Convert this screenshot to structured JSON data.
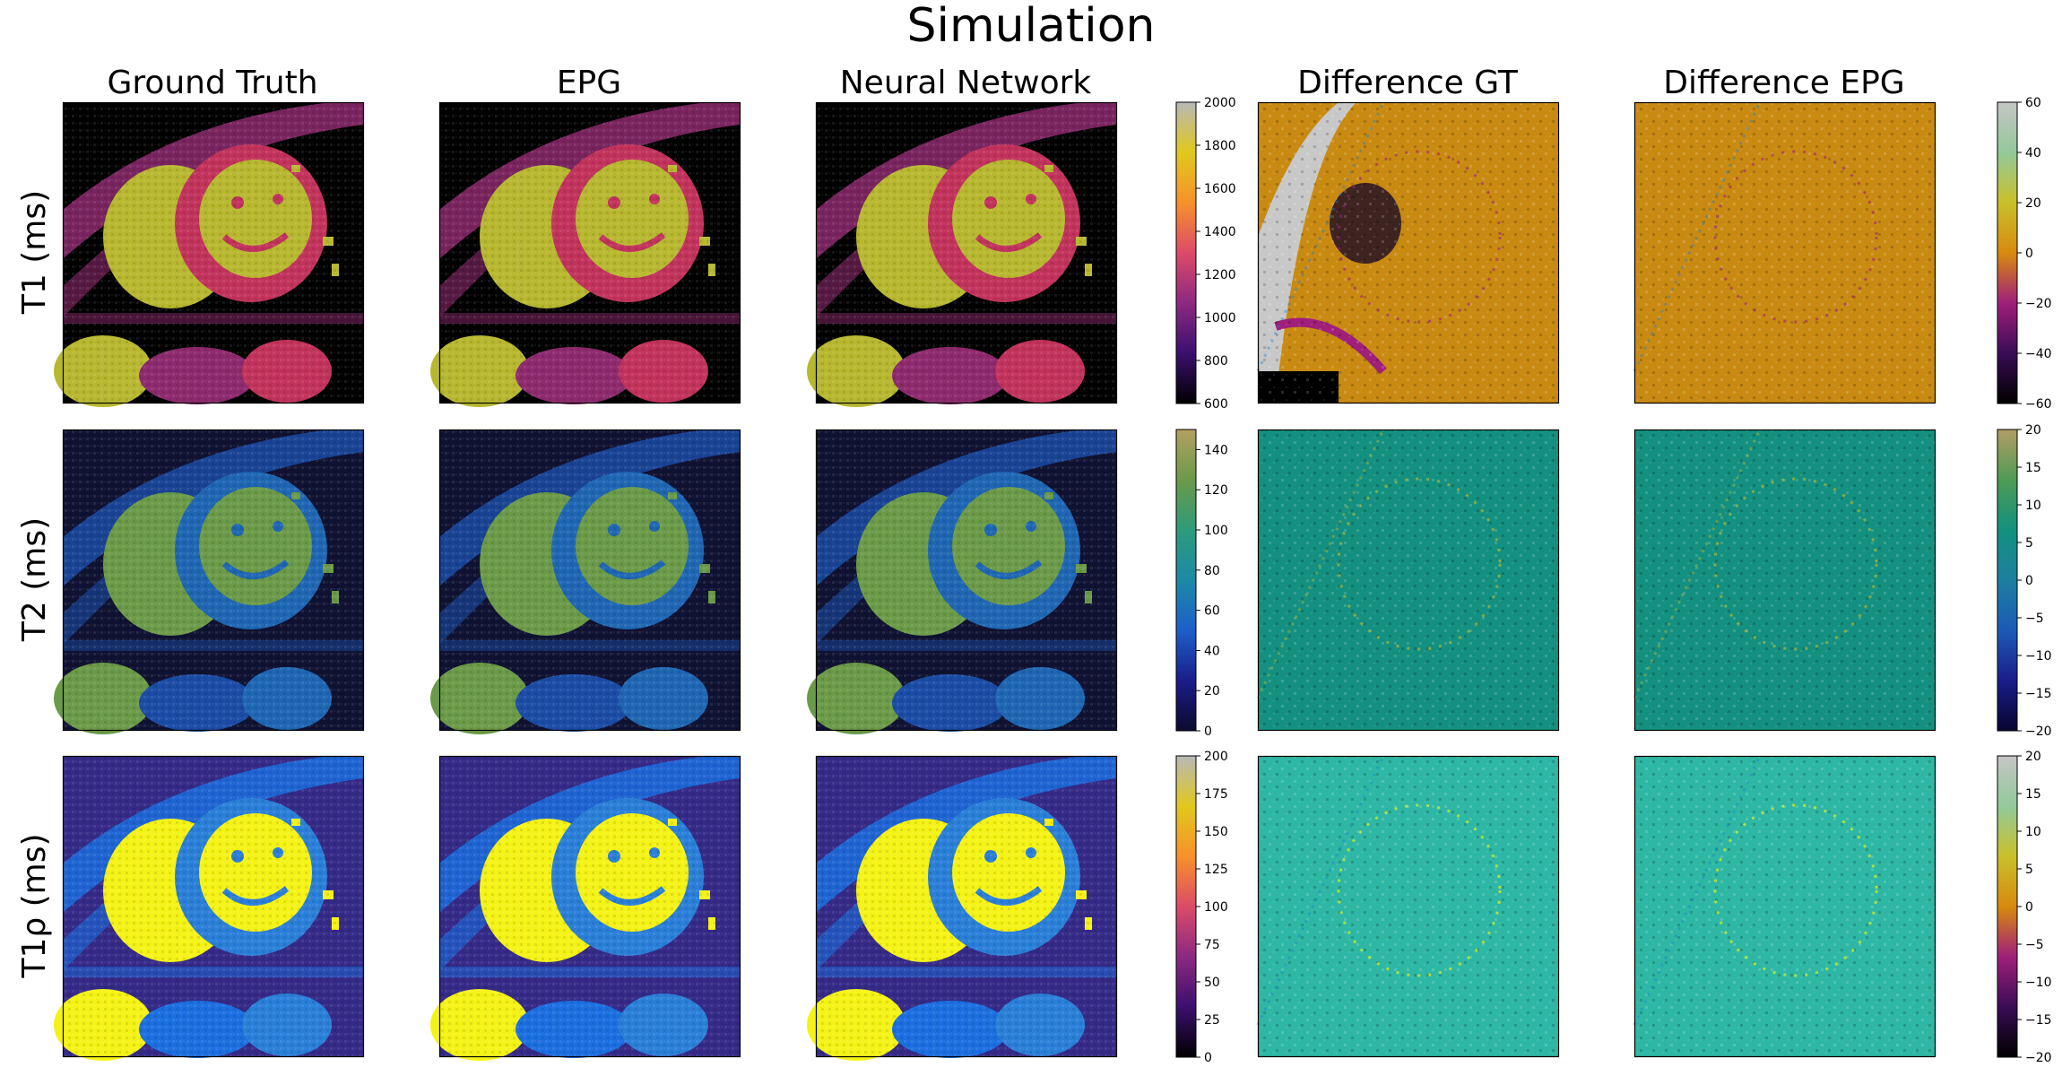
{
  "figure": {
    "title": "Simulation",
    "column_titles": [
      "Ground Truth",
      "EPG",
      "Neural Network",
      "Difference GT",
      "Difference EPG"
    ],
    "row_labels": [
      "T1 (ms)",
      "T2 (ms)",
      "T1ρ (ms)"
    ]
  },
  "chart_data": {
    "type": "heatmap",
    "title": "Simulation",
    "description_columns": [
      "Ground Truth",
      "EPG",
      "Neural Network",
      "Difference GT",
      "Difference EPG"
    ],
    "rows": [
      {
        "label": "T1 (ms)",
        "map_colorbar": {
          "colormap": "inferno-like",
          "range": [
            600,
            2000
          ],
          "ticks": [
            600,
            800,
            1000,
            1200,
            1400,
            1600,
            1800,
            2000
          ],
          "colors": [
            "#000000",
            "#3b0f6f",
            "#8c2981",
            "#dd4a68",
            "#f7912a",
            "#e0c81c",
            "#b8b8b8"
          ]
        },
        "diff_colorbar": {
          "colormap": "diverging-inferno",
          "range": [
            -60,
            60
          ],
          "ticks": [
            -60,
            -40,
            -20,
            0,
            20,
            40,
            60
          ],
          "colors": [
            "#000000",
            "#3a0c56",
            "#a01f7a",
            "#d88a0e",
            "#c9c02a",
            "#93c99a",
            "#c5c5c5"
          ]
        },
        "panel_colors": {
          "background": "#000000",
          "tissue": "#8e2a6e",
          "blood": "#b8b830",
          "myocardium": "#c2335c",
          "diff_bg": "#c98a12"
        }
      },
      {
        "label": "T2 (ms)",
        "map_colorbar": {
          "colormap": "viridis-like",
          "range": [
            0,
            150
          ],
          "ticks": [
            0,
            20,
            40,
            60,
            80,
            100,
            120,
            140
          ],
          "colors": [
            "#0c0a2e",
            "#1a1d8a",
            "#1c5fc9",
            "#1c8aa7",
            "#2d9b7a",
            "#6b9a48",
            "#b3a062"
          ]
        },
        "diff_colorbar": {
          "colormap": "diverging-viridis",
          "range": [
            -20,
            20
          ],
          "ticks": [
            -20,
            -15,
            -10,
            -5,
            0,
            5,
            10,
            15,
            20
          ],
          "colors": [
            "#070530",
            "#1a1d8a",
            "#1c5ab8",
            "#1d7fa0",
            "#13917f",
            "#4f9b55",
            "#b29d64"
          ]
        },
        "panel_colors": {
          "background": "#0f1232",
          "tissue": "#1b4ca6",
          "blood": "#6b9a48",
          "myocardium": "#1f66b3",
          "diff_bg": "#149080"
        }
      },
      {
        "label": "T1ρ (ms)",
        "map_colorbar": {
          "colormap": "parula-like",
          "range": [
            0,
            200
          ],
          "ticks": [
            0,
            25,
            50,
            75,
            100,
            125,
            150,
            175,
            200
          ],
          "colors": [
            "#352a87",
            "#0f5cdd",
            "#1481d6",
            "#06a4ca",
            "#2eb7a4",
            "#87bf77",
            "#d1bb59",
            "#fec832",
            "#f9fb0e"
          ]
        },
        "diff_colorbar": {
          "colormap": "parula-like",
          "range": [
            -20,
            20
          ],
          "ticks": [
            -20,
            -15,
            -10,
            -5,
            0,
            5,
            10,
            15,
            20
          ],
          "colors": [
            "#352a87",
            "#0f5cdd",
            "#1481d6",
            "#06a4ca",
            "#2eb7a4",
            "#87bf77",
            "#d1bb59",
            "#fec832",
            "#f9fb0e"
          ]
        },
        "panel_colors": {
          "background": "#352a87",
          "tissue": "#1b6fe0",
          "blood": "#f5f316",
          "myocardium": "#2a7fd8",
          "diff_bg": "#2eb7a4"
        }
      }
    ]
  }
}
